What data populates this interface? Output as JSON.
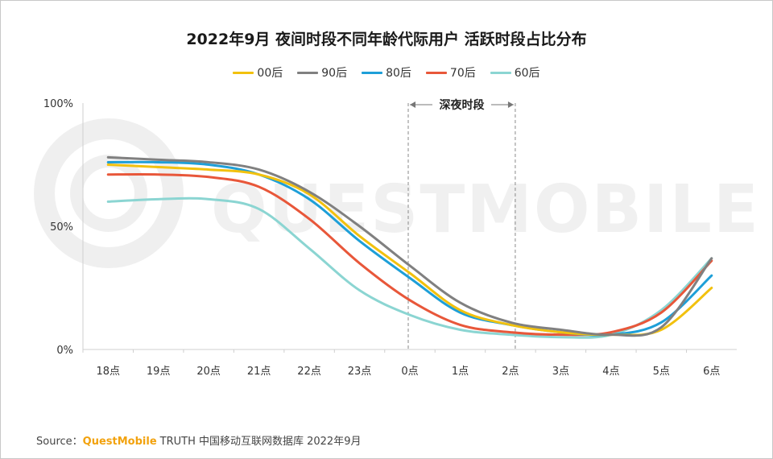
{
  "chart_data": {
    "type": "line",
    "title": "2022年9月 夜间时段不同年龄代际用户 活跃时段占比分布",
    "categories": [
      "18点",
      "19点",
      "20点",
      "21点",
      "22点",
      "23点",
      "0点",
      "1点",
      "2点",
      "3点",
      "4点",
      "5点",
      "6点"
    ],
    "y_ticks": [
      "100%",
      "50%",
      "0%"
    ],
    "ylim": [
      0,
      100
    ],
    "series": [
      {
        "name": "00后",
        "color": "#f2c10e",
        "values": [
          75,
          74,
          73,
          71,
          63,
          46,
          31,
          16,
          10,
          7,
          6,
          8,
          25
        ]
      },
      {
        "name": "90后",
        "color": "#808080",
        "values": [
          78,
          77,
          76,
          73,
          64,
          50,
          34,
          19,
          11,
          8,
          6,
          9,
          37
        ]
      },
      {
        "name": "80后",
        "color": "#1e9fd8",
        "values": [
          76,
          76,
          75,
          71,
          61,
          44,
          29,
          15,
          10,
          7,
          6,
          11,
          30
        ]
      },
      {
        "name": "70后",
        "color": "#e8573a",
        "values": [
          71,
          71,
          70,
          66,
          53,
          35,
          20,
          10,
          7,
          6,
          7,
          15,
          36
        ]
      },
      {
        "name": "60后",
        "color": "#8bd5d2",
        "values": [
          60,
          61,
          61,
          57,
          41,
          24,
          14,
          8,
          6,
          5,
          6,
          16,
          37
        ]
      }
    ],
    "annotation": {
      "label": "深夜时段",
      "from": "0点",
      "to": "2点"
    },
    "watermark": "QUESTMOBILE"
  },
  "source": {
    "label": "Source：",
    "brand": "QuestMobile",
    "text": "TRUTH 中国移动互联网数据库 2022年9月"
  }
}
